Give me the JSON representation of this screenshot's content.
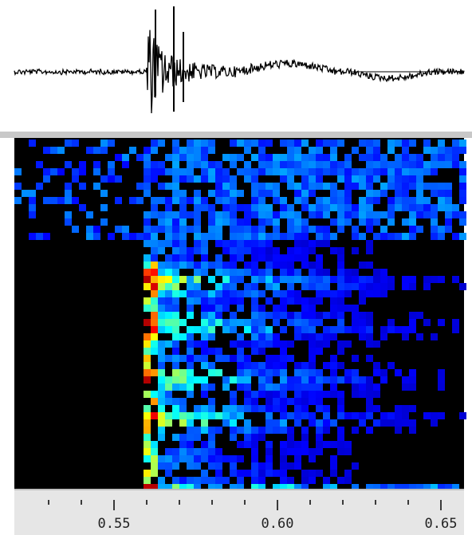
{
  "time_axis": {
    "ticks": [
      "0.55",
      "0.60",
      "0.65"
    ]
  }
}
